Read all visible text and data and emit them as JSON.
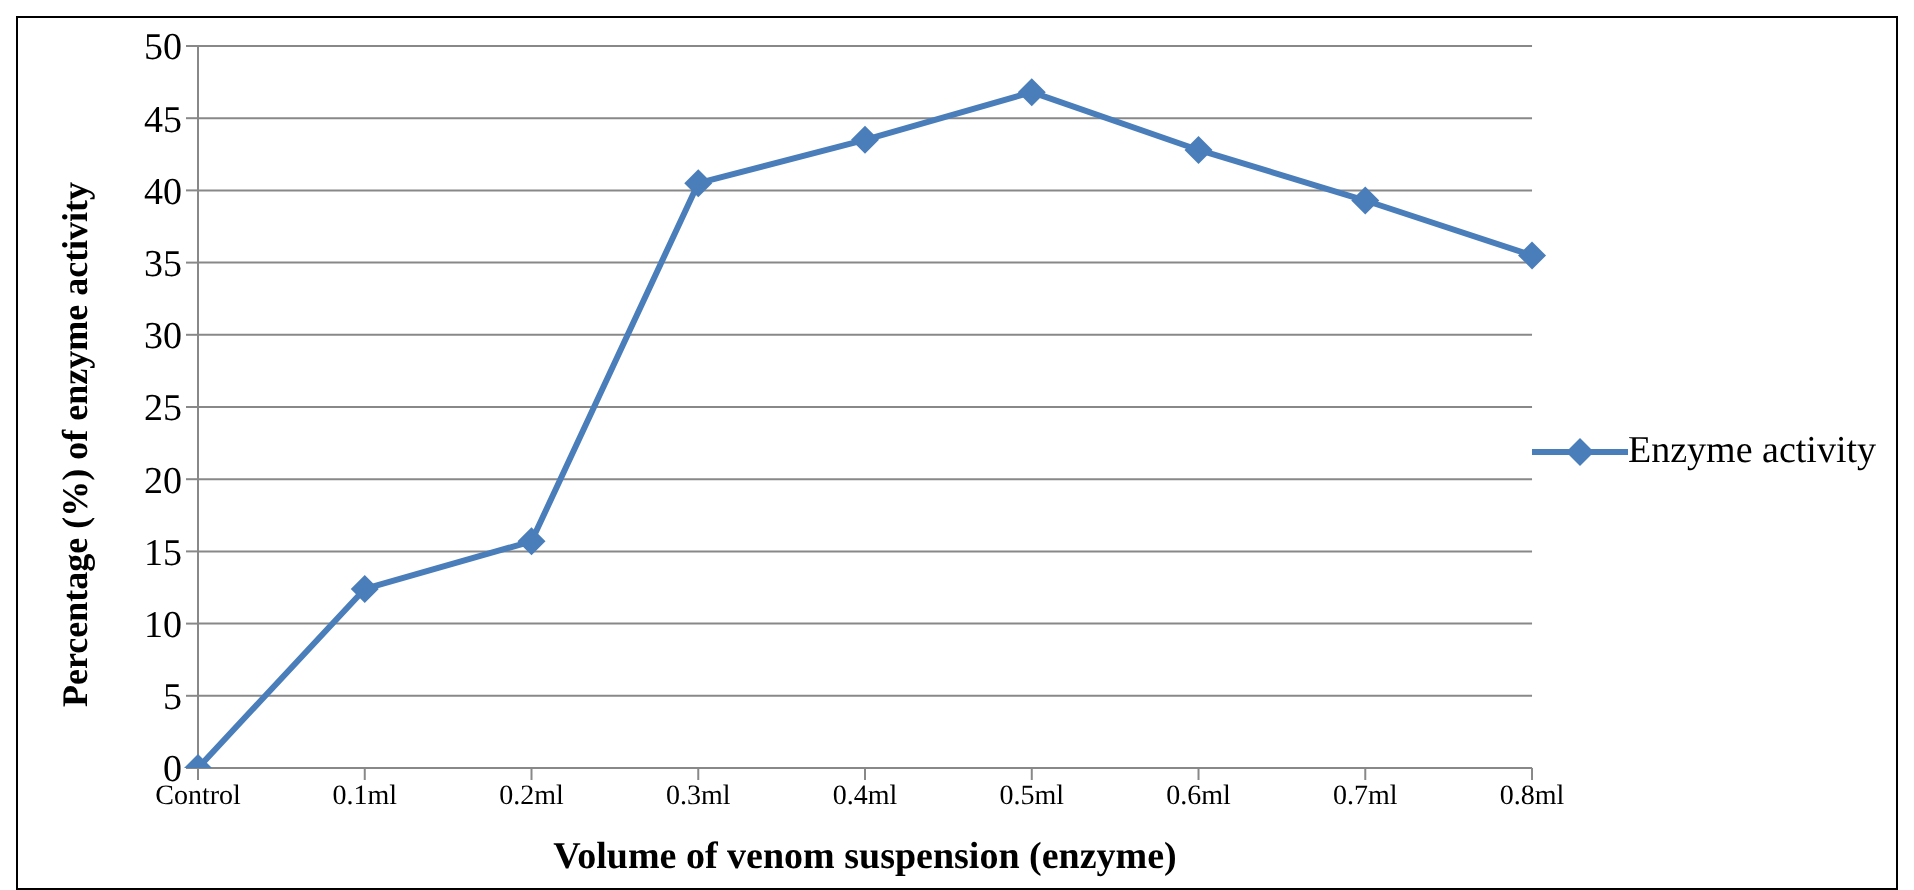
{
  "chart_data": {
    "type": "line",
    "xlabel": "Volume of venom suspension (enzyme)",
    "ylabel": "Percentage (%) of enzyme activity",
    "categories": [
      "Control",
      "0.1ml",
      "0.2ml",
      "0.3ml",
      "0.4ml",
      "0.5ml",
      "0.6ml",
      "0.7ml",
      "0.8ml"
    ],
    "series": [
      {
        "name": "Enzyme activity",
        "color": "#4a7ebb",
        "values": [
          0,
          12.4,
          15.7,
          40.5,
          43.5,
          46.8,
          42.8,
          39.3,
          35.5
        ]
      }
    ],
    "ylim": [
      0,
      50
    ],
    "yticks": [
      0,
      5,
      10,
      15,
      20,
      25,
      30,
      35,
      40,
      45,
      50
    ],
    "grid": "y",
    "legend": "right",
    "marker": "diamond",
    "line_style": "solid"
  }
}
